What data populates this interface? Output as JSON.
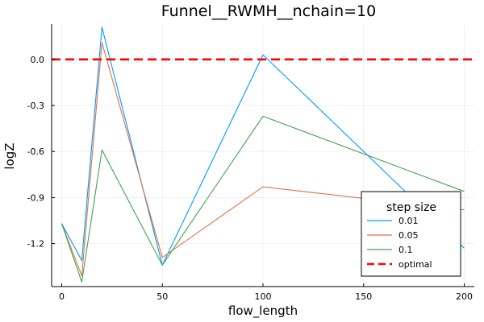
{
  "chart_data": {
    "type": "line",
    "title": "Funnel__RWMH__nchain=10",
    "xlabel": "flow_length",
    "ylabel": "logZ",
    "x": [
      0,
      10,
      20,
      50,
      100,
      200
    ],
    "xlim": [
      -5,
      205
    ],
    "ylim": [
      -1.48,
      0.23
    ],
    "xticks": [
      0,
      50,
      100,
      150,
      200
    ],
    "xtick_labels": [
      "0",
      "50",
      "100",
      "150",
      "200"
    ],
    "yticks": [
      0.0,
      -0.3,
      -0.6,
      -0.9,
      -1.2
    ],
    "ytick_labels": [
      "0.0",
      "-0.3",
      "-0.6",
      "-0.9",
      "-1.2"
    ],
    "grid": true,
    "legend": {
      "title": "step size",
      "position": "bottom-right"
    },
    "series": [
      {
        "name": "0.01",
        "color": "#009AFA",
        "values": [
          -1.07,
          -1.31,
          0.21,
          -1.34,
          0.03,
          -1.23
        ]
      },
      {
        "name": "0.05",
        "color": "#E36F47",
        "values": [
          -1.07,
          -1.41,
          0.11,
          -1.29,
          -0.83,
          -0.98
        ]
      },
      {
        "name": "0.1",
        "color": "#3EA44E",
        "values": [
          -1.07,
          -1.45,
          -0.59,
          -1.34,
          -0.37,
          -0.86
        ]
      }
    ],
    "reference_line": {
      "name": "optimal",
      "y": 0.0,
      "color": "#FF0000",
      "style": "dashed"
    }
  }
}
